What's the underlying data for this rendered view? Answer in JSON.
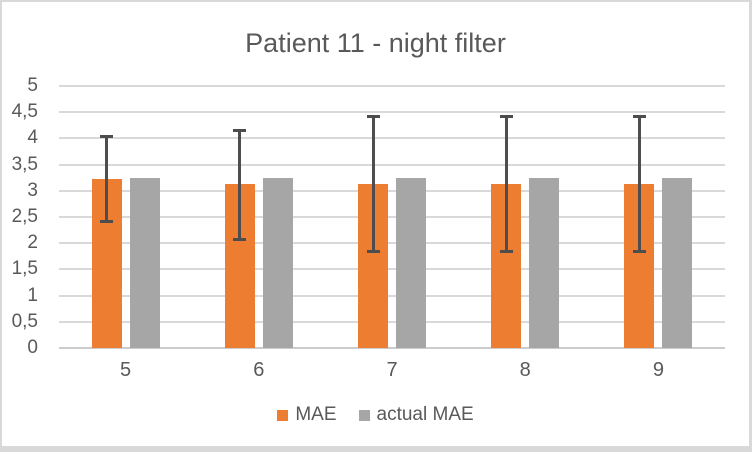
{
  "window": {
    "background": "#FFFFFF",
    "border_color": "#D9D9D9"
  },
  "chart_data": {
    "type": "bar",
    "title": "Patient 11 - night filter",
    "categories": [
      "5",
      "6",
      "7",
      "8",
      "9"
    ],
    "series": [
      {
        "name": "MAE",
        "color": "#ED7D31",
        "values": [
          3.22,
          3.13,
          3.13,
          3.13,
          3.13
        ],
        "error_bars": {
          "low": [
            2.42,
            2.07,
            1.84,
            1.84,
            1.85
          ],
          "high": [
            4.03,
            4.16,
            4.42,
            4.42,
            4.42
          ],
          "color": "#4D4D4D"
        }
      },
      {
        "name": "actual MAE",
        "color": "#A6A6A6",
        "values": [
          3.24,
          3.24,
          3.24,
          3.24,
          3.24
        ]
      }
    ],
    "y_axis": {
      "min": 0,
      "max": 5,
      "tick_step": 0.5,
      "tick_labels": [
        "0",
        "0,5",
        "1",
        "1,5",
        "2",
        "2,5",
        "3",
        "3,5",
        "4",
        "4,5",
        "5"
      ],
      "decimal_separator": ","
    },
    "x_axis": {
      "label": ""
    },
    "legend_position": "bottom",
    "grid": true,
    "gridline_color": "#D9D9D9",
    "axis_line_color": "#CCCCCC",
    "text_color": "#595959"
  }
}
